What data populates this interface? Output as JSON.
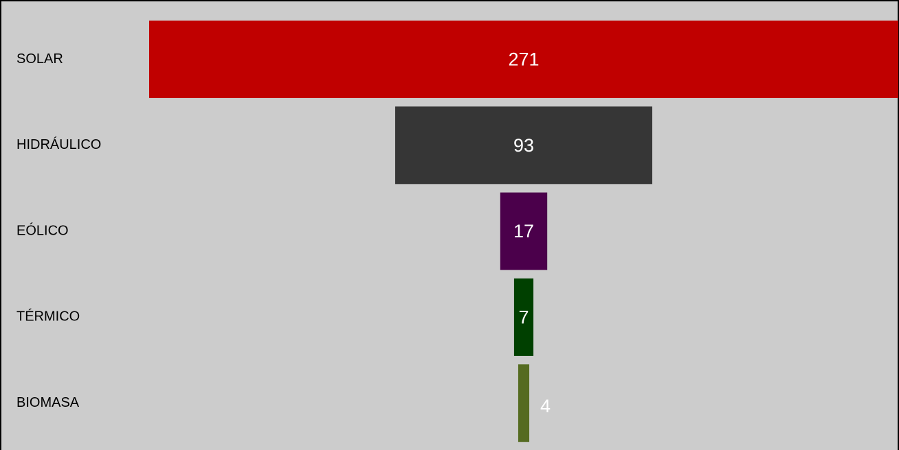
{
  "chart_data": {
    "type": "funnel",
    "categories": [
      "SOLAR",
      "HIDRÁULICO",
      "EÓLICO",
      "TÉRMICO",
      "BIOMASA"
    ],
    "values": [
      271,
      93,
      17,
      7,
      4
    ],
    "colors": [
      "#c00000",
      "#363636",
      "#4b004b",
      "#004000",
      "#556b21"
    ]
  }
}
